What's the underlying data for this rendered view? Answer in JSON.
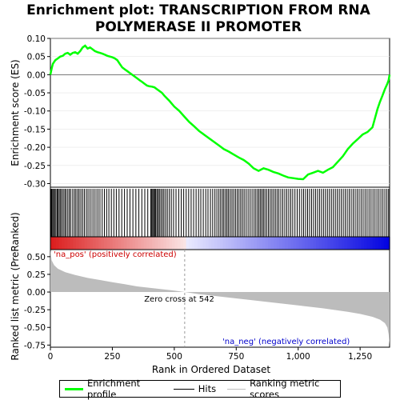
{
  "chart_data": {
    "type": "line",
    "title_lines": [
      "Enrichment plot: TRANSCRIPTION FROM RNA",
      "POLYMERASE II PROMOTER"
    ],
    "es_panel": {
      "ylabel": "Enrichment score (ES)",
      "ylim": [
        -0.31,
        0.1
      ],
      "yticks": [
        "0.10",
        "0.05",
        "0.00",
        "-0.05",
        "-0.10",
        "-0.15",
        "-0.20",
        "-0.25",
        "-0.30"
      ],
      "ytick_values": [
        0.1,
        0.05,
        0.0,
        -0.05,
        -0.1,
        -0.15,
        -0.2,
        -0.25,
        -0.3
      ],
      "series": {
        "name": "Enrichment profile",
        "color": "#00ff00",
        "x": [
          0,
          3,
          6,
          10,
          15,
          20,
          30,
          40,
          50,
          60,
          70,
          80,
          90,
          100,
          110,
          120,
          130,
          140,
          150,
          160,
          170,
          180,
          190,
          200,
          210,
          220,
          230,
          240,
          250,
          260,
          270,
          280,
          290,
          300,
          310,
          320,
          330,
          340,
          350,
          360,
          370,
          380,
          390,
          400,
          410,
          420,
          430,
          440,
          450,
          460,
          470,
          480,
          490,
          500,
          520,
          540,
          560,
          580,
          600,
          620,
          640,
          660,
          680,
          700,
          720,
          740,
          760,
          780,
          800,
          820,
          840,
          860,
          880,
          900,
          920,
          940,
          960,
          980,
          1000,
          1020,
          1040,
          1060,
          1080,
          1100,
          1120,
          1140,
          1160,
          1180,
          1200,
          1220,
          1240,
          1260,
          1280,
          1300,
          1310,
          1320,
          1330,
          1340,
          1350,
          1360,
          1365,
          1369
        ],
        "y": [
          0.0,
          0.01,
          0.02,
          0.03,
          0.035,
          0.04,
          0.045,
          0.05,
          0.052,
          0.058,
          0.06,
          0.055,
          0.06,
          0.062,
          0.058,
          0.065,
          0.075,
          0.08,
          0.072,
          0.075,
          0.07,
          0.065,
          0.062,
          0.06,
          0.058,
          0.055,
          0.052,
          0.05,
          0.048,
          0.045,
          0.04,
          0.03,
          0.02,
          0.015,
          0.01,
          0.005,
          0.0,
          -0.005,
          -0.01,
          -0.015,
          -0.02,
          -0.025,
          -0.03,
          -0.032,
          -0.033,
          -0.035,
          -0.04,
          -0.045,
          -0.05,
          -0.058,
          -0.065,
          -0.072,
          -0.08,
          -0.088,
          -0.1,
          -0.115,
          -0.13,
          -0.142,
          -0.155,
          -0.165,
          -0.175,
          -0.185,
          -0.195,
          -0.205,
          -0.212,
          -0.22,
          -0.228,
          -0.235,
          -0.245,
          -0.258,
          -0.265,
          -0.258,
          -0.262,
          -0.268,
          -0.272,
          -0.278,
          -0.283,
          -0.285,
          -0.287,
          -0.288,
          -0.275,
          -0.27,
          -0.265,
          -0.27,
          -0.262,
          -0.255,
          -0.24,
          -0.225,
          -0.205,
          -0.19,
          -0.178,
          -0.165,
          -0.158,
          -0.145,
          -0.12,
          -0.095,
          -0.075,
          -0.058,
          -0.04,
          -0.025,
          -0.015,
          0.0
        ]
      }
    },
    "hits_panel": {
      "series_name": "Hits",
      "hits": [
        2,
        5,
        9,
        13,
        17,
        22,
        27,
        31,
        36,
        41,
        46,
        52,
        58,
        63,
        70,
        76,
        82,
        90,
        97,
        103,
        110,
        116,
        123,
        130,
        137,
        145,
        152,
        160,
        168,
        176,
        184,
        192,
        200,
        209,
        218,
        227,
        236,
        246,
        256,
        266,
        277,
        288,
        299,
        310,
        321,
        333,
        345,
        357,
        369,
        381,
        393,
        405,
        409,
        413,
        417,
        421,
        425,
        430,
        435,
        440,
        446,
        452,
        458,
        465,
        472,
        480,
        488,
        497,
        507,
        518,
        528,
        538,
        548,
        558,
        568,
        578,
        588,
        598,
        607,
        617,
        627,
        636,
        646,
        655,
        664,
        672,
        680,
        687,
        694,
        700,
        707,
        713,
        719,
        726,
        733,
        740,
        747,
        754,
        761,
        768,
        775,
        782,
        790,
        798,
        806,
        814,
        822,
        829,
        836,
        842,
        848,
        854,
        860,
        866,
        873,
        880,
        887,
        894,
        901,
        908,
        915,
        922,
        930,
        938,
        946,
        954,
        962,
        970,
        978,
        987,
        996,
        1005,
        1014,
        1022,
        1030,
        1038,
        1046,
        1054,
        1062,
        1070,
        1078,
        1086,
        1094,
        1102,
        1110,
        1118,
        1126,
        1134,
        1142,
        1150,
        1158,
        1166,
        1174,
        1182,
        1190,
        1198,
        1206,
        1214,
        1222,
        1230,
        1238,
        1246,
        1254,
        1262,
        1270,
        1278,
        1286,
        1294,
        1302,
        1310,
        1318,
        1326,
        1334,
        1342,
        1350,
        1358,
        1365
      ]
    },
    "ranking_panel": {
      "ylabel": "Ranked list metric (PreRanked)",
      "xlabel": "Rank in Ordered Dataset",
      "ylim": [
        -0.78,
        0.6
      ],
      "yticks": [
        "0.50",
        "0.25",
        "0.00",
        "-0.25",
        "-0.50",
        "-0.75"
      ],
      "ytick_values": [
        0.5,
        0.25,
        0.0,
        -0.25,
        -0.5,
        -0.75
      ],
      "xlim": [
        0,
        1369
      ],
      "xticks": [
        "0",
        "250",
        "500",
        "750",
        "1,000",
        "1,250"
      ],
      "xtick_values": [
        0,
        250,
        500,
        750,
        1000,
        1250
      ],
      "series_name": "Ranking metric scores",
      "profile_x": [
        0,
        5,
        15,
        30,
        60,
        100,
        150,
        200,
        250,
        300,
        350,
        400,
        450,
        500,
        542,
        600,
        700,
        800,
        900,
        1000,
        1100,
        1200,
        1250,
        1300,
        1330,
        1350,
        1360,
        1365,
        1369
      ],
      "profile_y": [
        0.6,
        0.45,
        0.38,
        0.33,
        0.28,
        0.24,
        0.2,
        0.17,
        0.14,
        0.11,
        0.08,
        0.06,
        0.04,
        0.02,
        0.0,
        -0.03,
        -0.07,
        -0.11,
        -0.15,
        -0.19,
        -0.23,
        -0.28,
        -0.31,
        -0.35,
        -0.39,
        -0.44,
        -0.5,
        -0.6,
        -0.75
      ],
      "zero_cross_label": "Zero cross at 542",
      "zero_cross": 542,
      "pos_label": "'na_pos' (positively correlated)",
      "neg_label": "'na_neg' (negatively correlated)",
      "pos_color": "#ff0000",
      "neg_color": "#0000ff"
    }
  },
  "legend": {
    "items": [
      {
        "label": "Enrichment profile",
        "color": "#00ff00"
      },
      {
        "label": "Hits",
        "color": "#000000"
      },
      {
        "label": "Ranking metric scores",
        "color": "#c0c0c0"
      }
    ]
  }
}
